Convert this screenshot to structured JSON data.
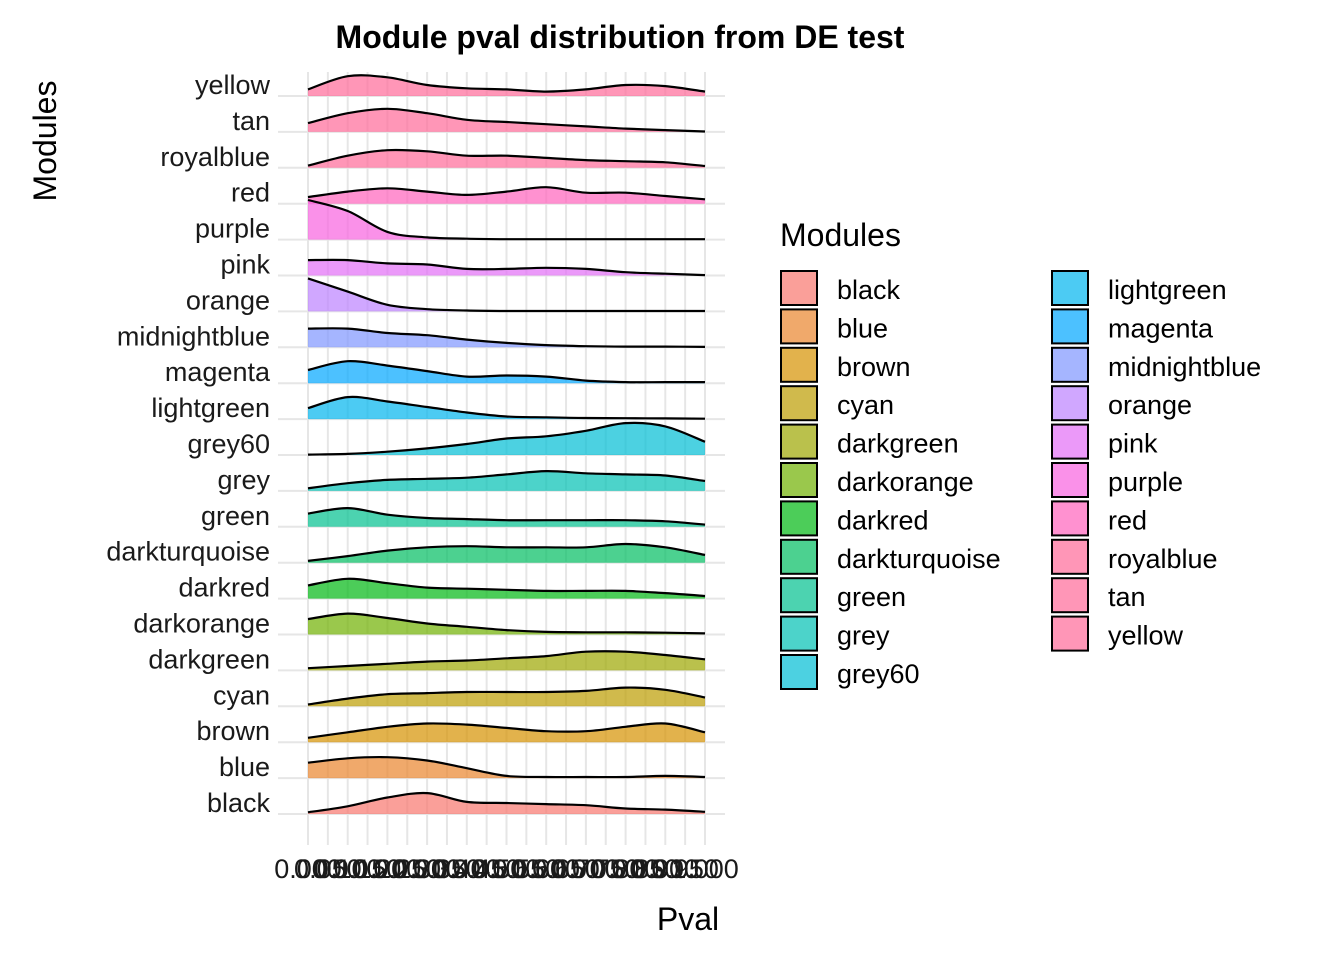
{
  "chart_data": {
    "type": "area",
    "title": "Module pval distribution from DE test",
    "xlabel": "Pval",
    "ylabel": "Modules",
    "xlim": [
      0,
      1
    ],
    "x_ticks": [
      "0.000",
      "0.050",
      "0.100",
      "0.150",
      "0.200",
      "0.250",
      "0.300",
      "0.350",
      "0.400",
      "0.450",
      "0.500",
      "0.550",
      "0.600",
      "0.650",
      "0.700",
      "0.750",
      "0.800",
      "0.850",
      "0.900",
      "0.950",
      "1.000"
    ],
    "grid": true,
    "legend_title": "Modules",
    "legend_position": "right",
    "x_grid": [
      0,
      0.05,
      0.1,
      0.15,
      0.2,
      0.25,
      0.3,
      0.35,
      0.4,
      0.45,
      0.5,
      0.55,
      0.6,
      0.65,
      0.7,
      0.75,
      0.8,
      0.85,
      0.9,
      0.95,
      1.0
    ],
    "series": [
      {
        "name": "black",
        "color": "#F8766D",
        "x": [
          0,
          0.1,
          0.2,
          0.3,
          0.4,
          0.5,
          0.6,
          0.7,
          0.8,
          0.9,
          1.0
        ],
        "density": [
          0.08,
          0.35,
          0.75,
          0.95,
          0.55,
          0.5,
          0.45,
          0.4,
          0.25,
          0.2,
          0.1
        ]
      },
      {
        "name": "blue",
        "color": "#E9842C",
        "x": [
          0,
          0.1,
          0.2,
          0.3,
          0.4,
          0.5,
          0.6,
          0.7,
          0.8,
          0.9,
          1.0
        ],
        "density": [
          0.7,
          0.9,
          0.95,
          0.8,
          0.45,
          0.1,
          0.05,
          0.05,
          0.05,
          0.1,
          0.05
        ]
      },
      {
        "name": "brown",
        "color": "#D69100",
        "x": [
          0,
          0.1,
          0.2,
          0.3,
          0.4,
          0.5,
          0.6,
          0.7,
          0.8,
          0.9,
          1.0
        ],
        "density": [
          0.2,
          0.45,
          0.7,
          0.85,
          0.8,
          0.65,
          0.5,
          0.5,
          0.7,
          0.85,
          0.45
        ]
      },
      {
        "name": "cyan",
        "color": "#BC9D00",
        "x": [
          0,
          0.1,
          0.2,
          0.3,
          0.4,
          0.5,
          0.6,
          0.7,
          0.8,
          0.9,
          1.0
        ],
        "density": [
          0.08,
          0.35,
          0.55,
          0.6,
          0.65,
          0.65,
          0.65,
          0.7,
          0.85,
          0.75,
          0.4
        ]
      },
      {
        "name": "darkgreen",
        "color": "#9CA700",
        "x": [
          0,
          0.1,
          0.2,
          0.3,
          0.4,
          0.5,
          0.6,
          0.7,
          0.8,
          0.9,
          1.0
        ],
        "density": [
          0.1,
          0.2,
          0.3,
          0.4,
          0.45,
          0.55,
          0.65,
          0.85,
          0.85,
          0.7,
          0.5
        ]
      },
      {
        "name": "darkorange",
        "color": "#6FB000",
        "x": [
          0,
          0.1,
          0.2,
          0.3,
          0.4,
          0.5,
          0.6,
          0.7,
          0.8,
          0.9,
          1.0
        ],
        "density": [
          0.7,
          0.95,
          0.75,
          0.5,
          0.35,
          0.2,
          0.12,
          0.1,
          0.1,
          0.08,
          0.05
        ]
      },
      {
        "name": "darkred",
        "color": "#00B813",
        "x": [
          0,
          0.1,
          0.2,
          0.3,
          0.4,
          0.5,
          0.6,
          0.7,
          0.8,
          0.9,
          1.0
        ],
        "density": [
          0.6,
          0.9,
          0.7,
          0.5,
          0.45,
          0.4,
          0.35,
          0.35,
          0.35,
          0.25,
          0.12
        ]
      },
      {
        "name": "darkturquoise",
        "color": "#00BD61",
        "x": [
          0,
          0.1,
          0.2,
          0.3,
          0.4,
          0.5,
          0.6,
          0.7,
          0.8,
          0.9,
          1.0
        ],
        "density": [
          0.08,
          0.3,
          0.55,
          0.7,
          0.75,
          0.7,
          0.7,
          0.7,
          0.85,
          0.7,
          0.35
        ]
      },
      {
        "name": "green",
        "color": "#00C08E",
        "x": [
          0,
          0.1,
          0.2,
          0.3,
          0.4,
          0.5,
          0.6,
          0.7,
          0.8,
          0.9,
          1.0
        ],
        "density": [
          0.6,
          0.85,
          0.55,
          0.4,
          0.35,
          0.3,
          0.3,
          0.3,
          0.3,
          0.25,
          0.1
        ]
      },
      {
        "name": "grey",
        "color": "#00C0B4",
        "x": [
          0,
          0.1,
          0.2,
          0.3,
          0.4,
          0.5,
          0.6,
          0.7,
          0.8,
          0.9,
          1.0
        ],
        "density": [
          0.12,
          0.35,
          0.5,
          0.55,
          0.6,
          0.75,
          0.9,
          0.8,
          0.75,
          0.7,
          0.45
        ]
      },
      {
        "name": "grey60",
        "color": "#00BDD4",
        "x": [
          0,
          0.1,
          0.2,
          0.3,
          0.4,
          0.5,
          0.6,
          0.7,
          0.8,
          0.9,
          1.0
        ],
        "density": [
          0.02,
          0.05,
          0.15,
          0.3,
          0.5,
          0.75,
          0.85,
          1.1,
          1.45,
          1.3,
          0.6
        ]
      },
      {
        "name": "lightgreen",
        "color": "#00B5EE",
        "x": [
          0,
          0.1,
          0.2,
          0.3,
          0.4,
          0.5,
          0.6,
          0.7,
          0.8,
          0.9,
          1.0
        ],
        "density": [
          0.5,
          1.0,
          0.8,
          0.55,
          0.3,
          0.12,
          0.08,
          0.05,
          0.04,
          0.03,
          0.02
        ]
      },
      {
        "name": "magenta",
        "color": "#00A7FF",
        "x": [
          0,
          0.1,
          0.2,
          0.3,
          0.4,
          0.5,
          0.6,
          0.7,
          0.8,
          0.9,
          1.0
        ],
        "density": [
          0.6,
          1.0,
          0.8,
          0.55,
          0.3,
          0.35,
          0.3,
          0.12,
          0.05,
          0.05,
          0.05
        ]
      },
      {
        "name": "midnightblue",
        "color": "#7F96FF",
        "x": [
          0,
          0.1,
          0.2,
          0.3,
          0.4,
          0.5,
          0.6,
          0.7,
          0.8,
          0.9,
          1.0
        ],
        "density": [
          0.85,
          0.85,
          0.65,
          0.55,
          0.35,
          0.2,
          0.1,
          0.05,
          0.03,
          0.03,
          0.02
        ]
      },
      {
        "name": "orange",
        "color": "#BC81FF",
        "x": [
          0,
          0.1,
          0.2,
          0.3,
          0.4,
          0.5,
          0.6,
          0.7,
          0.8,
          0.9,
          1.0
        ],
        "density": [
          1.5,
          0.9,
          0.3,
          0.1,
          0.04,
          0.02,
          0.02,
          0.02,
          0.02,
          0.02,
          0.02
        ]
      },
      {
        "name": "pink",
        "color": "#E26EF7",
        "x": [
          0,
          0.1,
          0.2,
          0.3,
          0.4,
          0.5,
          0.6,
          0.7,
          0.8,
          0.9,
          1.0
        ],
        "density": [
          0.7,
          0.7,
          0.55,
          0.5,
          0.3,
          0.3,
          0.35,
          0.3,
          0.15,
          0.08,
          0.02
        ]
      },
      {
        "name": "purple",
        "color": "#F863DF",
        "x": [
          0,
          0.1,
          0.2,
          0.3,
          0.4,
          0.5,
          0.6,
          0.7,
          0.8,
          0.9,
          1.0
        ],
        "density": [
          1.8,
          1.3,
          0.35,
          0.1,
          0.04,
          0.02,
          0.02,
          0.02,
          0.02,
          0.02,
          0.02
        ]
      },
      {
        "name": "red",
        "color": "#FF62BC",
        "x": [
          0,
          0.1,
          0.2,
          0.3,
          0.4,
          0.5,
          0.6,
          0.7,
          0.8,
          0.9,
          1.0
        ],
        "density": [
          0.3,
          0.55,
          0.7,
          0.55,
          0.4,
          0.55,
          0.75,
          0.5,
          0.5,
          0.35,
          0.2
        ]
      },
      {
        "name": "royalblue",
        "color": "#FF6A98",
        "x": [
          0,
          0.1,
          0.2,
          0.3,
          0.4,
          0.5,
          0.6,
          0.7,
          0.8,
          0.9,
          1.0
        ],
        "density": [
          0.1,
          0.55,
          0.8,
          0.75,
          0.55,
          0.55,
          0.45,
          0.35,
          0.3,
          0.25,
          0.08
        ]
      },
      {
        "name": "tan",
        "color": "#FF6A98",
        "x": [
          0,
          0.1,
          0.2,
          0.3,
          0.4,
          0.5,
          0.6,
          0.7,
          0.8,
          0.9,
          1.0
        ],
        "density": [
          0.4,
          0.85,
          1.05,
          0.85,
          0.55,
          0.45,
          0.35,
          0.25,
          0.15,
          0.08,
          0.02
        ]
      },
      {
        "name": "yellow",
        "color": "#FF6A98",
        "x": [
          0,
          0.1,
          0.2,
          0.3,
          0.4,
          0.5,
          0.6,
          0.7,
          0.8,
          0.9,
          1.0
        ],
        "density": [
          0.3,
          0.9,
          0.85,
          0.5,
          0.35,
          0.3,
          0.2,
          0.3,
          0.5,
          0.45,
          0.2
        ]
      }
    ]
  }
}
